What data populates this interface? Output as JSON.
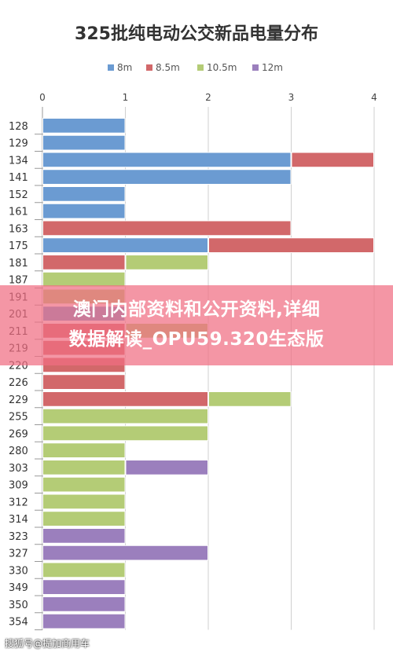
{
  "chart_data": {
    "type": "bar",
    "orientation": "horizontal",
    "stacked": true,
    "title": "325批纯电动公交新品电量分布",
    "legend_position": "top",
    "xlim": [
      0,
      4
    ],
    "x_ticks": [
      "0",
      "1",
      "2",
      "3",
      "4"
    ],
    "grid": true,
    "categories": [
      "128",
      "129",
      "134",
      "141",
      "152",
      "161",
      "163",
      "175",
      "181",
      "187",
      "191",
      "201",
      "211",
      "219",
      "220",
      "226",
      "229",
      "255",
      "269",
      "280",
      "303",
      "309",
      "312",
      "314",
      "323",
      "327",
      "330",
      "349",
      "350",
      "354"
    ],
    "series": [
      {
        "name": "8m",
        "color": "#6b9bd2",
        "values": [
          1,
          1,
          3,
          3,
          1,
          1,
          0,
          2,
          0,
          0,
          0,
          1,
          0,
          0,
          0,
          0,
          0,
          0,
          0,
          0,
          0,
          0,
          0,
          0,
          0,
          0,
          0,
          0,
          0,
          0
        ]
      },
      {
        "name": "8.5m",
        "color": "#d2686a",
        "values": [
          0,
          0,
          1,
          0,
          0,
          0,
          3,
          2,
          1,
          0,
          0,
          0,
          1,
          1,
          1,
          1,
          2,
          0,
          0,
          0,
          0,
          0,
          0,
          0,
          0,
          0,
          0,
          0,
          0,
          0
        ]
      },
      {
        "name": "10.5m",
        "color": "#b4cc76",
        "values": [
          0,
          0,
          0,
          0,
          0,
          0,
          0,
          0,
          1,
          1,
          1,
          0,
          1,
          0,
          0,
          0,
          1,
          2,
          2,
          1,
          1,
          1,
          1,
          1,
          0,
          0,
          1,
          0,
          0,
          0
        ]
      },
      {
        "name": "12m",
        "color": "#9b7fbd",
        "values": [
          0,
          0,
          0,
          0,
          0,
          0,
          0,
          0,
          0,
          0,
          0,
          0,
          0,
          0,
          0,
          0,
          0,
          0,
          0,
          0,
          1,
          0,
          0,
          0,
          1,
          2,
          0,
          1,
          1,
          1
        ]
      }
    ]
  },
  "banner": {
    "line1": "澳门内部资料和公开资料,详细",
    "line2": "数据解读_OPU59.320生态版"
  },
  "watermark": "搜狐号@提加商用车"
}
